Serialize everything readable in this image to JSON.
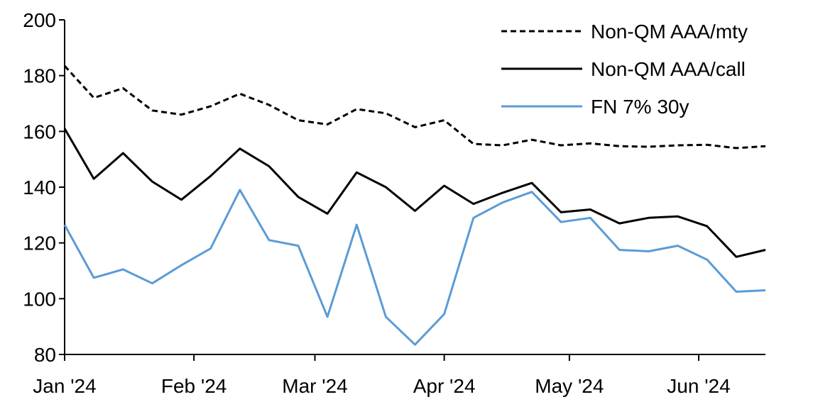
{
  "chart_data": {
    "type": "line",
    "title": "",
    "xlabel": "",
    "ylabel": "",
    "ylim": [
      80,
      200
    ],
    "y_ticks": [
      "80",
      "100",
      "120",
      "140",
      "160",
      "180",
      "200"
    ],
    "x_tick_labels": [
      "Jan '24",
      "Feb '24",
      "Mar '24",
      "Apr '24",
      "May '24",
      "Jun '24"
    ],
    "x_tick_dates": [
      "2024-01-01",
      "2024-02-01",
      "2024-03-01",
      "2024-04-01",
      "2024-05-01",
      "2024-06-01"
    ],
    "x": [
      "2024-01-01",
      "2024-01-08",
      "2024-01-15",
      "2024-01-22",
      "2024-01-29",
      "2024-02-05",
      "2024-02-12",
      "2024-02-19",
      "2024-02-26",
      "2024-03-04",
      "2024-03-11",
      "2024-03-18",
      "2024-03-25",
      "2024-04-01",
      "2024-04-08",
      "2024-04-15",
      "2024-04-22",
      "2024-04-29",
      "2024-05-06",
      "2024-05-13",
      "2024-05-20",
      "2024-05-27",
      "2024-06-03",
      "2024-06-10",
      "2024-06-17"
    ],
    "legend_position": "top-right",
    "grid": false,
    "series": [
      {
        "name": "Non-QM AAA/mty",
        "style": "dashed",
        "color": "#000000",
        "values": [
          183.5,
          172,
          175.5,
          167.5,
          166,
          169,
          173.5,
          169.5,
          164,
          162.5,
          168,
          166.5,
          161.5,
          164,
          155.5,
          155,
          157,
          155,
          155.7,
          154.7,
          154.5,
          155,
          155.2,
          154,
          154.7
        ]
      },
      {
        "name": "Non-QM AAA/call",
        "style": "solid",
        "color": "#000000",
        "values": [
          161,
          143,
          152.2,
          142,
          135.5,
          144,
          153.8,
          147.5,
          136.5,
          130.5,
          145.3,
          140,
          131.5,
          140.5,
          134,
          138,
          141.5,
          131,
          132,
          127,
          129,
          129.5,
          126,
          115,
          117.5
        ]
      },
      {
        "name": "FN 7% 30y",
        "style": "solid",
        "color": "#5B9BD5",
        "values": [
          126.5,
          107.5,
          110.5,
          105.5,
          112,
          118,
          139,
          121,
          119,
          93.5,
          126.5,
          93.5,
          83.5,
          94.5,
          129,
          134.5,
          138.3,
          127.5,
          129,
          117.5,
          117,
          119,
          114,
          102.5,
          103
        ]
      }
    ]
  }
}
